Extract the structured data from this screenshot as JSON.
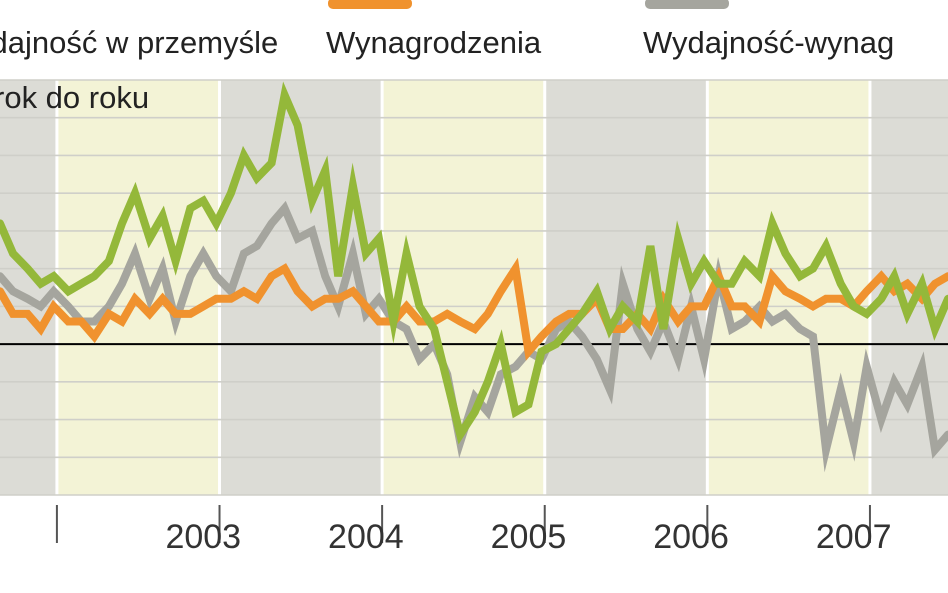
{
  "chart_data": {
    "type": "line",
    "title": "",
    "ylabel": "rok do roku",
    "xlabel": "",
    "ylim": [
      -20,
      35
    ],
    "xlim": [
      2001.65,
      2007.48
    ],
    "grid": true,
    "zero_line": true,
    "legend_position": "top",
    "year_ticks": [
      "2003",
      "2004",
      "2005",
      "2006",
      "2007"
    ],
    "year_tick_positions": [
      2002.9,
      2003.9,
      2004.9,
      2005.9,
      2006.9
    ],
    "year_bands": [
      {
        "start": 2001.65,
        "end": 2002.0,
        "fill": "#dcdcd6"
      },
      {
        "start": 2002.0,
        "end": 2003.0,
        "fill": "#f3f3d6"
      },
      {
        "start": 2003.0,
        "end": 2004.0,
        "fill": "#dcdcd6"
      },
      {
        "start": 2004.0,
        "end": 2005.0,
        "fill": "#f3f3d6"
      },
      {
        "start": 2005.0,
        "end": 2006.0,
        "fill": "#dcdcd6"
      },
      {
        "start": 2006.0,
        "end": 2007.0,
        "fill": "#f3f3d6"
      },
      {
        "start": 2007.0,
        "end": 2007.48,
        "fill": "#dcdcd6"
      }
    ],
    "series": [
      {
        "name": "Wydajność-wynag",
        "color": "#a5a59e",
        "points": [
          [
            2001.65,
            9
          ],
          [
            2001.73,
            7
          ],
          [
            2001.82,
            6
          ],
          [
            2001.9,
            5
          ],
          [
            2001.98,
            7
          ],
          [
            2002.07,
            5
          ],
          [
            2002.15,
            3
          ],
          [
            2002.23,
            3
          ],
          [
            2002.32,
            5
          ],
          [
            2002.4,
            8
          ],
          [
            2002.48,
            12
          ],
          [
            2002.57,
            6
          ],
          [
            2002.65,
            10
          ],
          [
            2002.73,
            3
          ],
          [
            2002.82,
            9
          ],
          [
            2002.9,
            12
          ],
          [
            2002.98,
            9
          ],
          [
            2003.07,
            7
          ],
          [
            2003.15,
            12
          ],
          [
            2003.23,
            13
          ],
          [
            2003.32,
            16
          ],
          [
            2003.4,
            18
          ],
          [
            2003.48,
            14
          ],
          [
            2003.57,
            15
          ],
          [
            2003.65,
            9
          ],
          [
            2003.73,
            5
          ],
          [
            2003.82,
            12
          ],
          [
            2003.9,
            4
          ],
          [
            2003.98,
            6
          ],
          [
            2004.07,
            3
          ],
          [
            2004.15,
            2
          ],
          [
            2004.23,
            -2
          ],
          [
            2004.32,
            0
          ],
          [
            2004.4,
            -4
          ],
          [
            2004.48,
            -13
          ],
          [
            2004.57,
            -7
          ],
          [
            2004.65,
            -9
          ],
          [
            2004.73,
            -4
          ],
          [
            2004.82,
            -3
          ],
          [
            2004.9,
            -1
          ],
          [
            2004.98,
            -2
          ],
          [
            2005.07,
            2
          ],
          [
            2005.15,
            3
          ],
          [
            2005.23,
            1
          ],
          [
            2005.32,
            -2
          ],
          [
            2005.4,
            -6
          ],
          [
            2005.48,
            8
          ],
          [
            2005.57,
            2
          ],
          [
            2005.65,
            -1
          ],
          [
            2005.73,
            3
          ],
          [
            2005.82,
            -2
          ],
          [
            2005.9,
            5
          ],
          [
            2005.98,
            -2
          ],
          [
            2006.07,
            9
          ],
          [
            2006.15,
            2
          ],
          [
            2006.23,
            3
          ],
          [
            2006.32,
            5
          ],
          [
            2006.4,
            3
          ],
          [
            2006.48,
            4
          ],
          [
            2006.57,
            2
          ],
          [
            2006.65,
            1
          ],
          [
            2006.73,
            -14
          ],
          [
            2006.82,
            -6
          ],
          [
            2006.9,
            -13
          ],
          [
            2006.98,
            -3
          ],
          [
            2007.07,
            -10
          ],
          [
            2007.15,
            -5
          ],
          [
            2007.23,
            -8
          ],
          [
            2007.32,
            -3
          ],
          [
            2007.4,
            -14
          ],
          [
            2007.48,
            -12
          ]
        ]
      },
      {
        "name": "Wynagrodzenia",
        "color": "#f0922e",
        "points": [
          [
            2001.65,
            7
          ],
          [
            2001.73,
            4
          ],
          [
            2001.82,
            4
          ],
          [
            2001.9,
            2
          ],
          [
            2001.98,
            5
          ],
          [
            2002.07,
            3
          ],
          [
            2002.15,
            3
          ],
          [
            2002.23,
            1
          ],
          [
            2002.32,
            4
          ],
          [
            2002.4,
            3
          ],
          [
            2002.48,
            6
          ],
          [
            2002.57,
            4
          ],
          [
            2002.65,
            6
          ],
          [
            2002.73,
            4
          ],
          [
            2002.82,
            4
          ],
          [
            2002.9,
            5
          ],
          [
            2002.98,
            6
          ],
          [
            2003.07,
            6
          ],
          [
            2003.15,
            7
          ],
          [
            2003.23,
            6
          ],
          [
            2003.32,
            9
          ],
          [
            2003.4,
            10
          ],
          [
            2003.48,
            7
          ],
          [
            2003.57,
            5
          ],
          [
            2003.65,
            6
          ],
          [
            2003.73,
            6
          ],
          [
            2003.82,
            7
          ],
          [
            2003.9,
            5
          ],
          [
            2003.98,
            3
          ],
          [
            2004.07,
            3
          ],
          [
            2004.15,
            5
          ],
          [
            2004.23,
            3
          ],
          [
            2004.32,
            3
          ],
          [
            2004.4,
            4
          ],
          [
            2004.48,
            3
          ],
          [
            2004.57,
            2
          ],
          [
            2004.65,
            4
          ],
          [
            2004.73,
            7
          ],
          [
            2004.82,
            10
          ],
          [
            2004.9,
            -1
          ],
          [
            2004.98,
            1
          ],
          [
            2005.07,
            3
          ],
          [
            2005.15,
            4
          ],
          [
            2005.23,
            4
          ],
          [
            2005.32,
            6
          ],
          [
            2005.4,
            2
          ],
          [
            2005.48,
            2
          ],
          [
            2005.57,
            4
          ],
          [
            2005.65,
            2
          ],
          [
            2005.73,
            6
          ],
          [
            2005.82,
            3
          ],
          [
            2005.9,
            5
          ],
          [
            2005.98,
            5
          ],
          [
            2006.07,
            9
          ],
          [
            2006.15,
            5
          ],
          [
            2006.23,
            5
          ],
          [
            2006.32,
            3
          ],
          [
            2006.4,
            9
          ],
          [
            2006.48,
            7
          ],
          [
            2006.57,
            6
          ],
          [
            2006.65,
            5
          ],
          [
            2006.73,
            6
          ],
          [
            2006.82,
            6
          ],
          [
            2006.9,
            5
          ],
          [
            2006.98,
            7
          ],
          [
            2007.07,
            9
          ],
          [
            2007.15,
            7
          ],
          [
            2007.23,
            8
          ],
          [
            2007.32,
            6
          ],
          [
            2007.4,
            8
          ],
          [
            2007.48,
            9
          ]
        ]
      },
      {
        "name": "Wydajność w przemyśle",
        "color": "#94b83a",
        "points": [
          [
            2001.65,
            16
          ],
          [
            2001.73,
            12
          ],
          [
            2001.82,
            10
          ],
          [
            2001.9,
            8
          ],
          [
            2001.98,
            9
          ],
          [
            2002.07,
            7
          ],
          [
            2002.15,
            8
          ],
          [
            2002.23,
            9
          ],
          [
            2002.32,
            11
          ],
          [
            2002.4,
            16
          ],
          [
            2002.48,
            20
          ],
          [
            2002.57,
            14
          ],
          [
            2002.65,
            17
          ],
          [
            2002.73,
            11
          ],
          [
            2002.82,
            18
          ],
          [
            2002.9,
            19
          ],
          [
            2002.98,
            16
          ],
          [
            2003.07,
            20
          ],
          [
            2003.15,
            25
          ],
          [
            2003.23,
            22
          ],
          [
            2003.32,
            24
          ],
          [
            2003.4,
            33
          ],
          [
            2003.48,
            29
          ],
          [
            2003.57,
            19
          ],
          [
            2003.65,
            23
          ],
          [
            2003.73,
            9
          ],
          [
            2003.82,
            21
          ],
          [
            2003.9,
            12
          ],
          [
            2003.98,
            14
          ],
          [
            2004.07,
            3
          ],
          [
            2004.15,
            12
          ],
          [
            2004.23,
            5
          ],
          [
            2004.32,
            2
          ],
          [
            2004.4,
            -5
          ],
          [
            2004.48,
            -12
          ],
          [
            2004.57,
            -9
          ],
          [
            2004.65,
            -5
          ],
          [
            2004.73,
            0
          ],
          [
            2004.82,
            -9
          ],
          [
            2004.9,
            -8
          ],
          [
            2004.98,
            -1
          ],
          [
            2005.07,
            0
          ],
          [
            2005.15,
            2
          ],
          [
            2005.23,
            4
          ],
          [
            2005.32,
            7
          ],
          [
            2005.4,
            2
          ],
          [
            2005.48,
            5
          ],
          [
            2005.57,
            3
          ],
          [
            2005.65,
            13
          ],
          [
            2005.73,
            2
          ],
          [
            2005.82,
            14
          ],
          [
            2005.9,
            8
          ],
          [
            2005.98,
            11
          ],
          [
            2006.07,
            8
          ],
          [
            2006.15,
            8
          ],
          [
            2006.23,
            11
          ],
          [
            2006.32,
            9
          ],
          [
            2006.4,
            16
          ],
          [
            2006.48,
            12
          ],
          [
            2006.57,
            9
          ],
          [
            2006.65,
            10
          ],
          [
            2006.73,
            13
          ],
          [
            2006.82,
            8
          ],
          [
            2006.9,
            5
          ],
          [
            2006.98,
            4
          ],
          [
            2007.07,
            6
          ],
          [
            2007.15,
            9
          ],
          [
            2007.23,
            4
          ],
          [
            2007.32,
            8
          ],
          [
            2007.4,
            2
          ],
          [
            2007.48,
            6
          ]
        ]
      }
    ]
  }
}
